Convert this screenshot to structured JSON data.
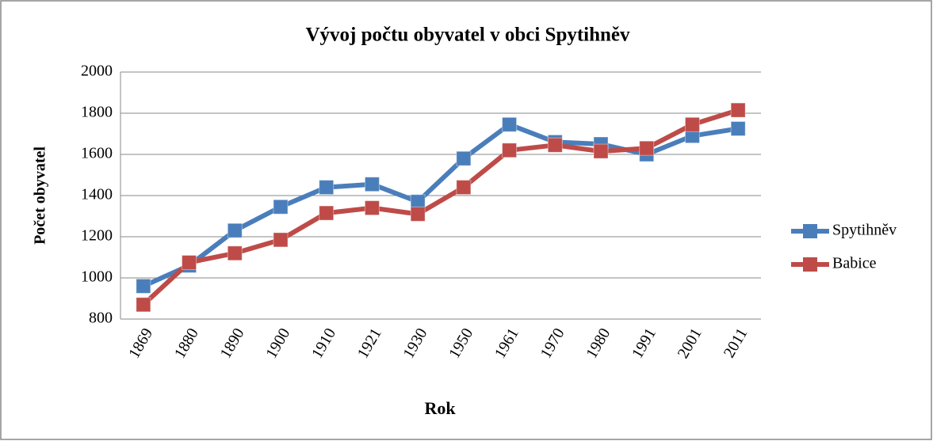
{
  "chart_data": {
    "type": "line",
    "title": "Vývoj počtu obyvatel v obci Spytihněv",
    "xlabel": "Rok",
    "ylabel": "Počet obyvatel",
    "categories": [
      "1869",
      "1880",
      "1890",
      "1900",
      "1910",
      "1921",
      "1930",
      "1950",
      "1961",
      "1970",
      "1980",
      "1991",
      "2001",
      "2011"
    ],
    "series": [
      {
        "name": "Spytihněv",
        "color": "#4a7ebb",
        "values": [
          960,
          1060,
          1230,
          1345,
          1440,
          1455,
          1370,
          1580,
          1745,
          1660,
          1650,
          1600,
          1690,
          1725
        ]
      },
      {
        "name": "Babice",
        "color": "#be4b48",
        "values": [
          870,
          1075,
          1120,
          1185,
          1315,
          1340,
          1310,
          1440,
          1620,
          1645,
          1615,
          1630,
          1745,
          1815
        ]
      }
    ],
    "ylim": [
      800,
      2000
    ],
    "yticks": [
      800,
      1000,
      1200,
      1400,
      1600,
      1800,
      2000
    ],
    "grid": true,
    "legend": "right"
  }
}
